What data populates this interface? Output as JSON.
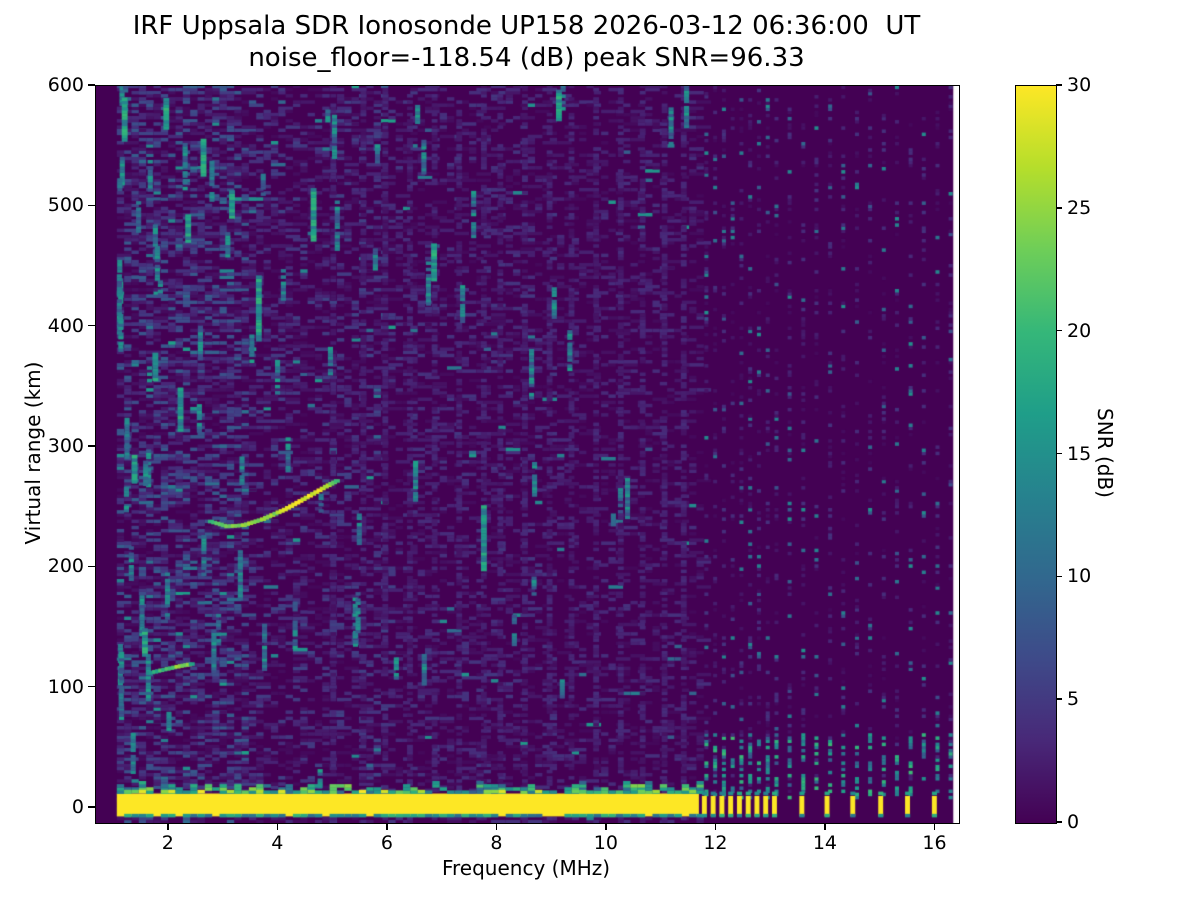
{
  "figure": {
    "background": "#ffffff"
  },
  "chart_data": {
    "type": "heatmap",
    "title": "IRF Uppsala SDR Ionosonde UP158 2026-03-12 06:36:00  UT",
    "subtitle": "noise_floor=-118.54 (dB) peak SNR=96.33",
    "xlabel": "Frequency (MHz)",
    "ylabel": "Virtual range (km)",
    "colorbar_label": "SNR (dB)",
    "noise_floor_db": -118.54,
    "peak_snr_db": 96.33,
    "xlim": [
      0.67,
      16.43
    ],
    "ylim": [
      -12.5,
      600
    ],
    "snr_lim": [
      0,
      30
    ],
    "x_ticks": [
      2,
      4,
      6,
      8,
      10,
      12,
      14,
      16
    ],
    "y_ticks": [
      0,
      100,
      200,
      300,
      400,
      500,
      600
    ],
    "colorbar_ticks": [
      0,
      5,
      10,
      15,
      20,
      25,
      30
    ],
    "colormap": {
      "name": "viridis",
      "stops": [
        "#440154",
        "#482878",
        "#3e4a89",
        "#31688e",
        "#26828e",
        "#1f9e89",
        "#35b779",
        "#6ece58",
        "#b5de2b",
        "#fde725"
      ]
    },
    "heatmap": {
      "seed": 1337,
      "cell_mhz": 0.134,
      "cell_km": 2.6,
      "sweep_start_mhz": 1.05,
      "continuous_end_mhz": 11.68,
      "data_end_mhz": 16.33,
      "noise": {
        "dash_probability": 0.5,
        "teal_probability": 0.016,
        "low_freq_boost_below_mhz": 3.4,
        "vertical_streak_count": 80
      },
      "faint_stripes_mhz": [
        4.95,
        5.5,
        5.9,
        6.35,
        6.8,
        7.25,
        7.7,
        8.0,
        8.45,
        8.9,
        9.3,
        9.75,
        10.2,
        10.6,
        11.0,
        11.35
      ],
      "discrete_columns_mhz": [
        11.78,
        11.94,
        12.1,
        12.26,
        12.42,
        12.58,
        12.74,
        12.9,
        13.06,
        13.3,
        13.55,
        13.79,
        14.04,
        14.28,
        14.53,
        14.77,
        15.02,
        15.26,
        15.51,
        15.75,
        16.0,
        16.24
      ],
      "ground_band": {
        "top_km": 12,
        "bottom_km": -7,
        "ragged_km": 9,
        "snr_db": 30,
        "bar_width_mhz": 0.09,
        "bar_columns_mhz": [
          11.78,
          11.94,
          12.1,
          12.26,
          12.42,
          12.58,
          12.74,
          12.9,
          13.06,
          13.56,
          14.02,
          14.49,
          15.0,
          15.49,
          15.98
        ]
      },
      "echo_traces": [
        {
          "name": "main-echo-trace",
          "snr_db": 18,
          "points_mhz_km": [
            [
              2.75,
              238
            ],
            [
              3.05,
              234
            ],
            [
              3.35,
              235
            ],
            [
              3.7,
              240
            ],
            [
              4.1,
              248
            ],
            [
              4.5,
              258
            ],
            [
              4.85,
              267
            ],
            [
              5.1,
              273
            ]
          ]
        },
        {
          "name": "low-echo-trace",
          "snr_db": 14,
          "points_mhz_km": [
            [
              1.62,
              112
            ],
            [
              1.9,
              115
            ],
            [
              2.2,
              118
            ],
            [
              2.45,
              120
            ]
          ]
        }
      ],
      "bright_streaks_mhz_kmlo_kmhi": [
        [
          1.14,
          554,
          588
        ],
        [
          1.51,
          126,
          147
        ],
        [
          2.58,
          525,
          554
        ],
        [
          3.59,
          388,
          442
        ],
        [
          2.16,
          313,
          347
        ],
        [
          4.59,
          471,
          513
        ],
        [
          6.79,
          438,
          467
        ],
        [
          7.7,
          197,
          251
        ],
        [
          1.32,
          270,
          292
        ],
        [
          1.9,
          564,
          590
        ],
        [
          2.3,
          470,
          492
        ],
        [
          9.07,
          571,
          596
        ],
        [
          1.7,
          355,
          378
        ],
        [
          3.1,
          490,
          512
        ]
      ]
    }
  }
}
